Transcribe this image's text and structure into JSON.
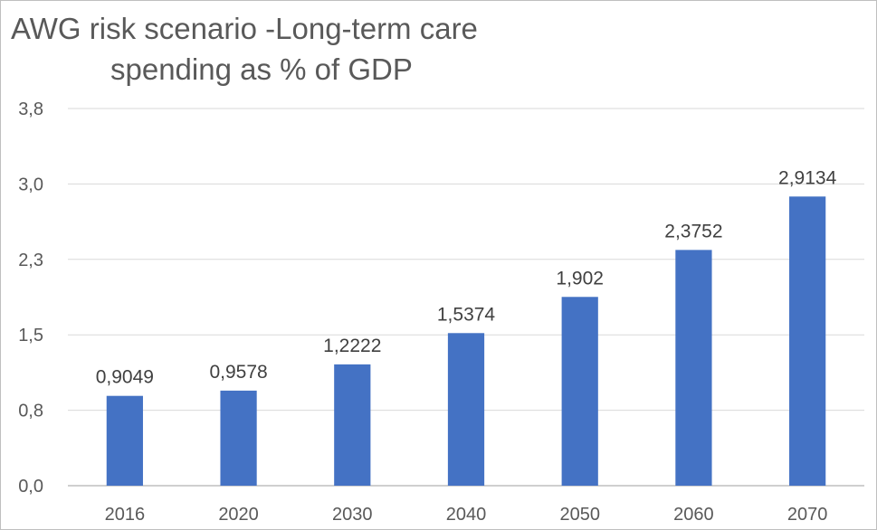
{
  "chart_data": {
    "type": "bar",
    "title_lines": [
      "AWG risk scenario -Long-term care",
      "spending as % of GDP"
    ],
    "categories": [
      "2016",
      "2020",
      "2030",
      "2040",
      "2050",
      "2060",
      "2070"
    ],
    "values": [
      0.9049,
      0.9578,
      1.2222,
      1.5374,
      1.902,
      2.3752,
      2.9134
    ],
    "data_labels": [
      "0,9049",
      "0,9578",
      "1,2222",
      "1,5374",
      "1,902",
      "2,3752",
      "2,9134"
    ],
    "y_ticks": [
      0,
      0.76,
      1.52,
      2.28,
      3.04,
      3.8
    ],
    "y_tick_labels": [
      "0,0",
      "0,8",
      "1,5",
      "2,3",
      "3,0",
      "3,8"
    ],
    "ylim": [
      0,
      3.8
    ],
    "xlabel": "",
    "ylabel": "",
    "grid": true,
    "legend": "none",
    "bar_color": "#4472c4",
    "grid_color": "#d9d9d9",
    "axis_color": "#bfbfbf"
  }
}
